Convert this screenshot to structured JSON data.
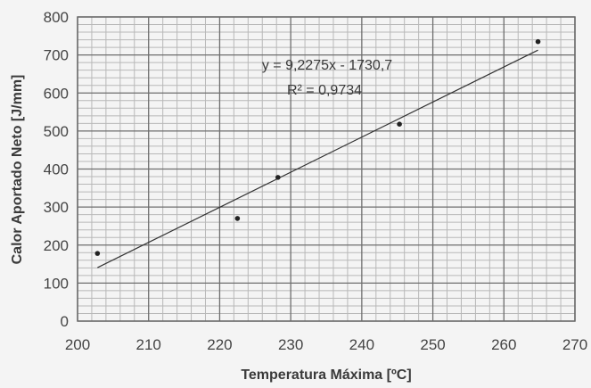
{
  "chart_data": {
    "type": "scatter",
    "xlabel": "Temperatura Máxima [ºC]",
    "ylabel": "Calor Aportado Neto [J/mm]",
    "xlim": [
      200,
      270
    ],
    "ylim": [
      0,
      800
    ],
    "x_ticks": [
      "200",
      "210",
      "220",
      "230",
      "240",
      "250",
      "260",
      "270"
    ],
    "y_ticks": [
      "0",
      "100",
      "200",
      "300",
      "400",
      "500",
      "600",
      "700",
      "800"
    ],
    "grid": true,
    "series": [
      {
        "points": [
          {
            "x": 202.8,
            "y": 178
          },
          {
            "x": 222.5,
            "y": 270
          },
          {
            "x": 228.2,
            "y": 378
          },
          {
            "x": 245.3,
            "y": 518
          },
          {
            "x": 264.8,
            "y": 735
          }
        ]
      }
    ],
    "trendline": {
      "type": "linear",
      "slope": 9.2275,
      "intercept": -1730.7,
      "x_range": [
        202.8,
        264.8
      ],
      "equation_label": "y = 9,2275x - 1730,7",
      "r2_label": "R² = 0,9734"
    }
  }
}
